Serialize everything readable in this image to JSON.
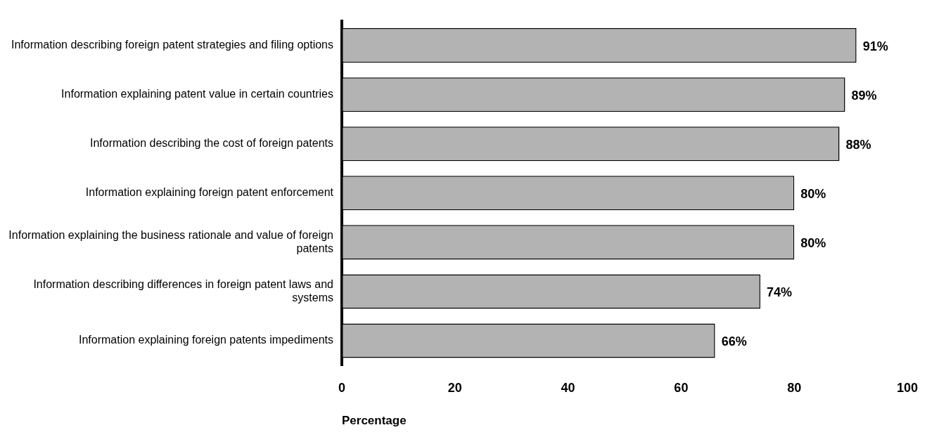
{
  "chart_data": {
    "type": "bar",
    "orientation": "horizontal",
    "xlabel": "Percentage",
    "categories": [
      "Information describing foreign patent strategies and filing options",
      "Information explaining patent value in certain countries",
      "Information describing the cost of foreign patents",
      "Information explaining foreign patent enforcement",
      "Information explaining the business rationale and value of foreign patents",
      "Information describing differences in foreign patent laws and systems",
      "Information explaining foreign patents impediments"
    ],
    "values": [
      91,
      89,
      88,
      80,
      80,
      74,
      66
    ],
    "value_labels": [
      "91%",
      "89%",
      "88%",
      "80%",
      "80%",
      "74%",
      "66%"
    ],
    "color": "#b3b3b3",
    "xlim": [
      0,
      100
    ],
    "xticks": [
      0,
      20,
      40,
      60,
      80,
      100
    ],
    "grid": false,
    "legend": false
  }
}
